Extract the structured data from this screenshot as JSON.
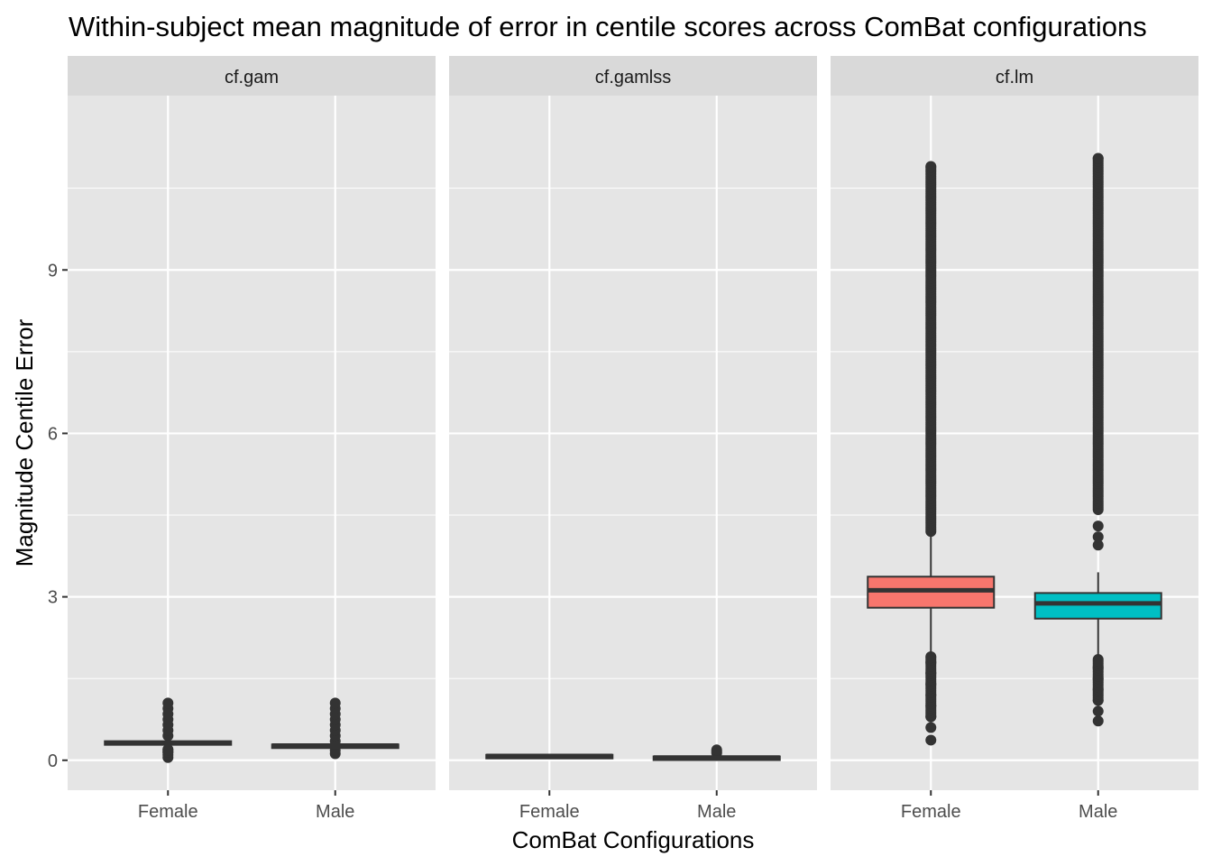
{
  "chart_data": {
    "type": "boxplot",
    "title": "Within-subject mean magnitude of error in centile scores across ComBat configurations",
    "xlabel": "ComBat Configurations",
    "ylabel": "Magnitude Centile Error",
    "facets": [
      "cf.gam",
      "cf.gamlss",
      "cf.lm"
    ],
    "categories": [
      "Female",
      "Male"
    ],
    "ylim": [
      -0.55,
      12.2
    ],
    "yticks": [
      0,
      3,
      6,
      9
    ],
    "grid": true,
    "colors": {
      "Female": "#F8766D",
      "Male": "#00BFC4",
      "panel_bg": "#E5E5E5",
      "strip_bg": "#D9D9D9",
      "grid": "#FFFFFF",
      "outline": "#333333"
    },
    "boxes": [
      {
        "facet": "cf.gam",
        "category": "Female",
        "q1": 0.29,
        "median": 0.32,
        "q3": 0.35,
        "whisker_low": 0.25,
        "whisker_high": 0.4,
        "outliers_low": [
          0.05,
          0.1,
          0.15,
          0.2
        ],
        "outliers_high": [
          0.45,
          0.55,
          0.65,
          0.75,
          0.85,
          0.95,
          1.05
        ]
      },
      {
        "facet": "cf.gam",
        "category": "Male",
        "q1": 0.25,
        "median": 0.27,
        "q3": 0.29,
        "whisker_low": 0.22,
        "whisker_high": 0.33,
        "outliers_low": [
          0.12,
          0.18
        ],
        "outliers_high": [
          0.35,
          0.45,
          0.55,
          0.65,
          0.75,
          0.85,
          0.95,
          1.05
        ]
      },
      {
        "facet": "cf.gamlss",
        "category": "Female",
        "q1": 0.06,
        "median": 0.08,
        "q3": 0.1,
        "whisker_low": 0.04,
        "whisker_high": 0.12,
        "outliers_low": [],
        "outliers_high": []
      },
      {
        "facet": "cf.gamlss",
        "category": "Male",
        "q1": 0.03,
        "median": 0.05,
        "q3": 0.07,
        "whisker_low": 0.01,
        "whisker_high": 0.1,
        "outliers_low": [],
        "outliers_high": [
          0.13,
          0.16,
          0.19
        ]
      },
      {
        "facet": "cf.lm",
        "category": "Female",
        "q1": 2.8,
        "median": 3.12,
        "q3": 3.37,
        "whisker_low": 1.95,
        "whisker_high": 4.2,
        "outliers_low": [
          0.37,
          0.6,
          0.8,
          1.0,
          1.2,
          1.4,
          1.6,
          1.8,
          1.9
        ],
        "outliers_high_range": [
          4.2,
          10.9
        ]
      },
      {
        "facet": "cf.lm",
        "category": "Male",
        "q1": 2.6,
        "median": 2.88,
        "q3": 3.07,
        "whisker_low": 1.9,
        "whisker_high": 3.45,
        "outliers_low": [
          0.72,
          0.9,
          1.1,
          1.3,
          1.5,
          1.7,
          1.85
        ],
        "outliers_high": [
          3.95,
          4.1,
          4.3
        ],
        "outliers_high_range": [
          4.6,
          11.05
        ]
      }
    ]
  }
}
